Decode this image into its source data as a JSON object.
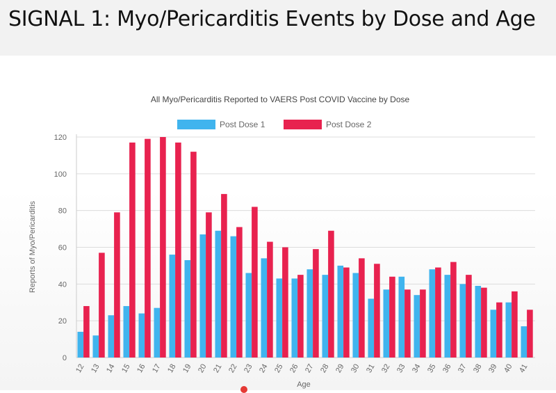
{
  "slide": {
    "title": "SIGNAL 1: Myo/Pericarditis Events by Dose and Age"
  },
  "colors": {
    "dose1": "#40b4ee",
    "dose2": "#e8224f",
    "grid": "#dcdcdc",
    "axis": "#cccccc"
  },
  "chart_data": {
    "type": "bar",
    "title": "All Myo/Pericarditis Reported to VAERS Post COVID Vaccine by Dose",
    "xlabel": "Age",
    "ylabel": "Reports of Myo/Pericarditis",
    "ylim": [
      0,
      120
    ],
    "yticks": [
      0,
      20,
      40,
      60,
      80,
      100,
      120
    ],
    "grid": true,
    "legend_position": "top",
    "categories": [
      "12",
      "13",
      "14",
      "15",
      "16",
      "17",
      "18",
      "19",
      "20",
      "21",
      "22",
      "23",
      "24",
      "25",
      "26",
      "27",
      "28",
      "29",
      "30",
      "31",
      "32",
      "33",
      "34",
      "35",
      "36",
      "37",
      "38",
      "39",
      "40",
      "41"
    ],
    "series": [
      {
        "name": "Post Dose 1",
        "color": "#40b4ee",
        "values": [
          14,
          12,
          23,
          28,
          24,
          27,
          56,
          53,
          67,
          69,
          66,
          46,
          54,
          43,
          43,
          48,
          45,
          50,
          46,
          32,
          37,
          44,
          34,
          48,
          45,
          40,
          39,
          26,
          30,
          17
        ]
      },
      {
        "name": "Post Dose 2",
        "color": "#e8224f",
        "values": [
          28,
          57,
          79,
          117,
          119,
          120,
          117,
          112,
          79,
          89,
          71,
          82,
          63,
          60,
          45,
          59,
          69,
          49,
          54,
          51,
          44,
          37,
          37,
          49,
          52,
          45,
          38,
          30,
          36,
          26
        ]
      }
    ]
  }
}
